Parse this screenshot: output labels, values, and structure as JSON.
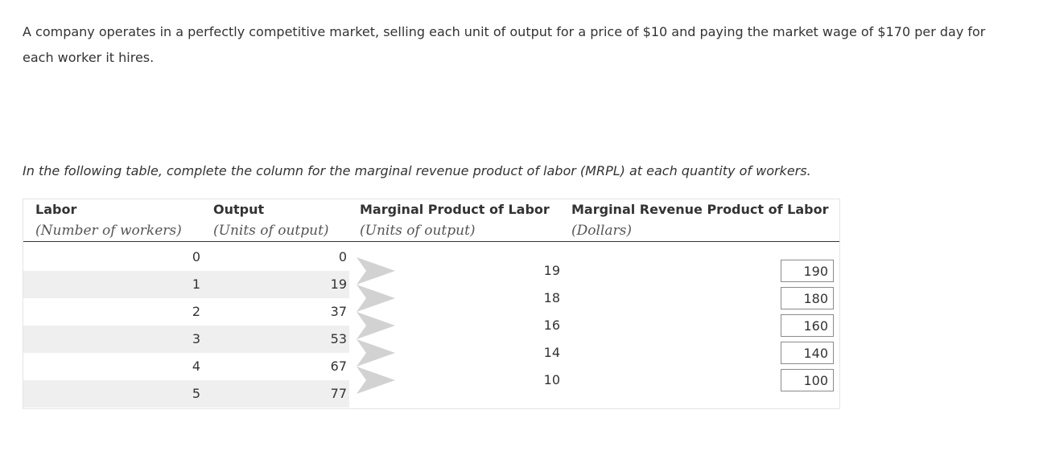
{
  "intro_text": "A company operates in a perfectly competitive market, selling each unit of output for a price of $10 and paying the market wage of $170 per day for each worker it hires.",
  "instruction_text": "In the following table, complete the column for the marginal revenue product of labor (MRPL) at each quantity of workers.",
  "table": {
    "headers": [
      {
        "title": "Labor",
        "unit": "(Number of workers)"
      },
      {
        "title": "Output",
        "unit": "(Units of output)"
      },
      {
        "title": "Marginal Product of Labor",
        "unit": "(Units of output)"
      },
      {
        "title": "Marginal Revenue Product of Labor",
        "unit": "(Dollars)"
      }
    ],
    "rows": [
      {
        "labor": "0",
        "output": "0"
      },
      {
        "labor": "1",
        "output": "19"
      },
      {
        "labor": "2",
        "output": "37"
      },
      {
        "labor": "3",
        "output": "53"
      },
      {
        "labor": "4",
        "output": "67"
      },
      {
        "labor": "5",
        "output": "77"
      }
    ],
    "marginal": [
      {
        "mpl": "19",
        "mrpl": "190"
      },
      {
        "mpl": "18",
        "mrpl": "180"
      },
      {
        "mpl": "16",
        "mrpl": "160"
      },
      {
        "mpl": "14",
        "mrpl": "140"
      },
      {
        "mpl": "10",
        "mrpl": "100"
      }
    ]
  },
  "colors": {
    "stripe": "#efefef",
    "chevron": "#d2d2d2",
    "rule": "#333333"
  },
  "icons": {
    "row_chevron": "chevron-right-icon"
  }
}
